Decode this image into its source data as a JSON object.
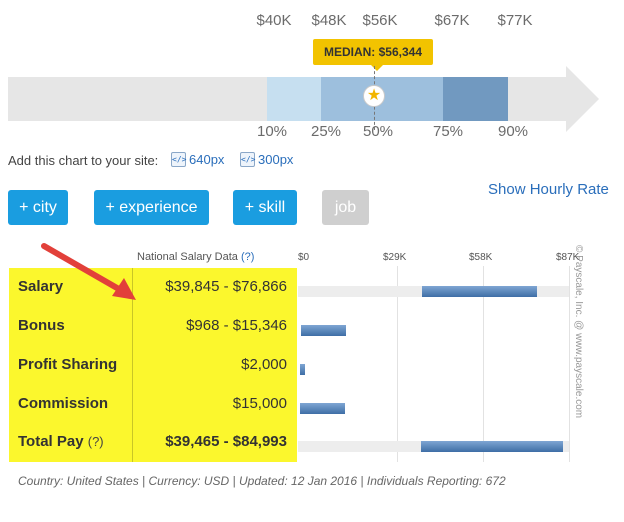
{
  "percentile_chart": {
    "dollar_labels": [
      "$40K",
      "$48K",
      "$56K",
      "$67K",
      "$77K"
    ],
    "percentile_labels": [
      "10%",
      "25%",
      "50%",
      "75%",
      "90%"
    ],
    "median_label": "MEDIAN: $56,344",
    "colors": {
      "p10_25": "#c6dff0",
      "p25_75": "#9dbfdd",
      "p75_90": "#7199c0",
      "track": "#e6e6e6",
      "badge": "#f2c300"
    }
  },
  "add_chart": {
    "label": "Add this chart to your site:",
    "size_640": "640px",
    "size_300": "300px"
  },
  "buttons": {
    "city": "+ city",
    "experience": "+ experience",
    "skill": "+ skill",
    "job": "job"
  },
  "show_hourly": "Show Hourly Rate",
  "table": {
    "header": "National Salary Data",
    "header_help": "(?)",
    "axis_ticks": [
      "$0",
      "$29K",
      "$58K",
      "$87K"
    ],
    "rows": [
      {
        "label": "Salary",
        "value": "$39,845 - $76,866"
      },
      {
        "label": "Bonus",
        "value": "$968 - $15,346"
      },
      {
        "label": "Profit Sharing",
        "value": "$2,000"
      },
      {
        "label": "Commission",
        "value": "$15,000"
      },
      {
        "label": "Total Pay",
        "help": "(?)",
        "value": "$39,465 - $84,993"
      }
    ]
  },
  "chart_data": {
    "type": "bar",
    "categories": [
      "Salary",
      "Bonus",
      "Profit Sharing",
      "Commission",
      "Total Pay"
    ],
    "ranges": [
      [
        39845,
        76866
      ],
      [
        968,
        15346
      ],
      [
        0,
        2000
      ],
      [
        0,
        15000
      ],
      [
        39465,
        84993
      ]
    ],
    "xlim": [
      0,
      87000
    ],
    "x_ticks": [
      "$0",
      "$29K",
      "$58K",
      "$87K"
    ]
  },
  "copyright": "© Payscale, Inc. @ www.payscale.com",
  "footer": "Country: United States | Currency: USD | Updated: 12 Jan 2016 | Individuals Reporting: 672"
}
